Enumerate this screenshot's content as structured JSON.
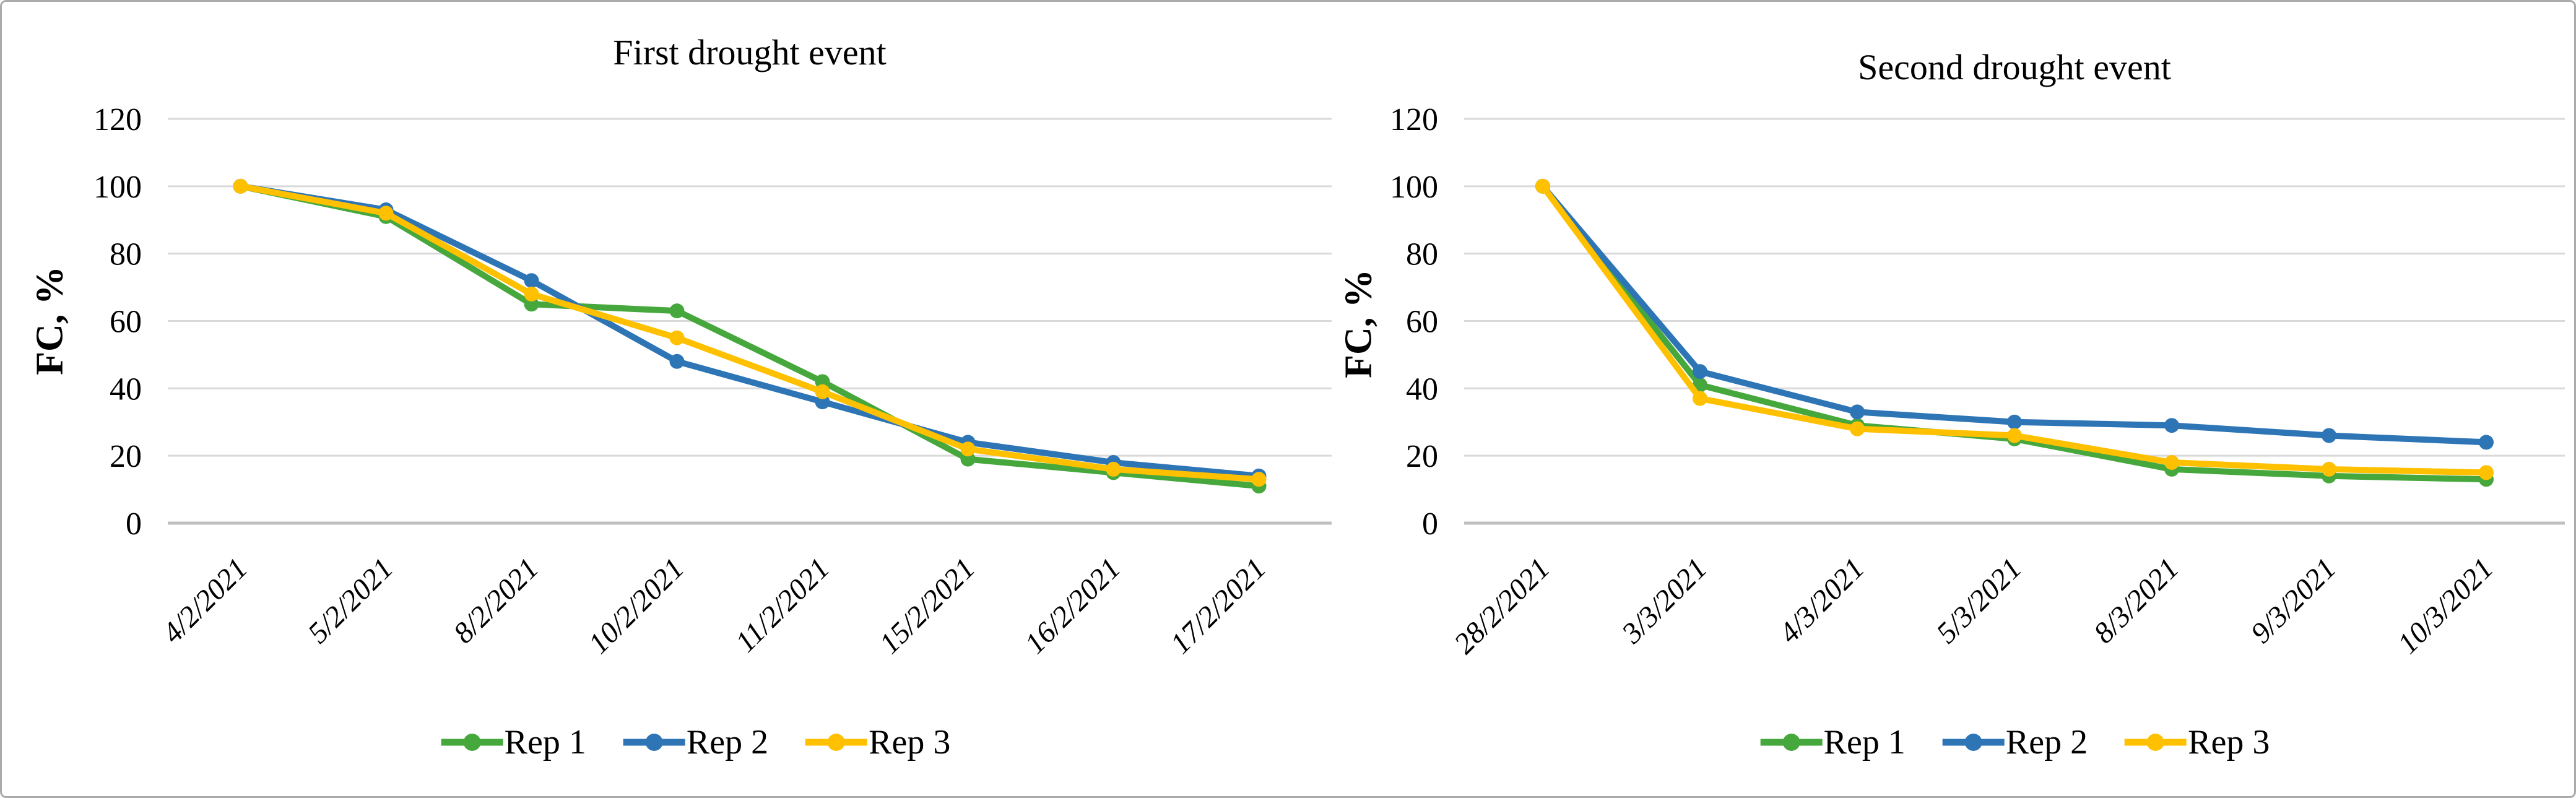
{
  "figure": {
    "background_color": "#ffffff",
    "border_color": "#ababab",
    "gridline_color": "#d9d9d9",
    "axisline_color": "#bfbfbf"
  },
  "chart_data": [
    {
      "type": "line",
      "title": "First drought event",
      "ylabel": "FC, %",
      "xlabel": "",
      "ylim": [
        0,
        120
      ],
      "yticks": [
        0,
        20,
        40,
        60,
        80,
        100,
        120
      ],
      "grid": true,
      "legend_position": "bottom",
      "x_tick_rotation_deg": -45,
      "categories": [
        "4/2/2021",
        "5/2/2021",
        "8/2/2021",
        "10/2/2021",
        "11/2/2021",
        "15/2/2021",
        "16/2/2021",
        "17/2/2021"
      ],
      "series": [
        {
          "name": "Rep 1",
          "color": "#46a83c",
          "values": [
            100,
            91,
            65,
            63,
            42,
            19,
            15,
            11
          ]
        },
        {
          "name": "Rep 2",
          "color": "#2e75b6",
          "values": [
            100,
            93,
            72,
            48,
            36,
            24,
            18,
            14
          ]
        },
        {
          "name": "Rep 3",
          "color": "#ffc000",
          "values": [
            100,
            92,
            68,
            55,
            39,
            22,
            16,
            13
          ]
        }
      ]
    },
    {
      "type": "line",
      "title": "Second drought event",
      "ylabel": "FC, %",
      "xlabel": "",
      "ylim": [
        0,
        120
      ],
      "yticks": [
        0,
        20,
        40,
        60,
        80,
        100,
        120
      ],
      "grid": true,
      "legend_position": "bottom",
      "x_tick_rotation_deg": -45,
      "categories": [
        "28/2/2021",
        "3/3/2021",
        "4/3/2021",
        "5/3/2021",
        "8/3/2021",
        "9/3/2021",
        "10/3/2021"
      ],
      "series": [
        {
          "name": "Rep 1",
          "color": "#46a83c",
          "values": [
            100,
            41,
            29,
            25,
            16,
            14,
            13
          ]
        },
        {
          "name": "Rep 2",
          "color": "#2e75b6",
          "values": [
            100,
            45,
            33,
            30,
            29,
            26,
            24
          ]
        },
        {
          "name": "Rep 3",
          "color": "#ffc000",
          "values": [
            100,
            37,
            28,
            26,
            18,
            16,
            15
          ]
        }
      ]
    }
  ]
}
